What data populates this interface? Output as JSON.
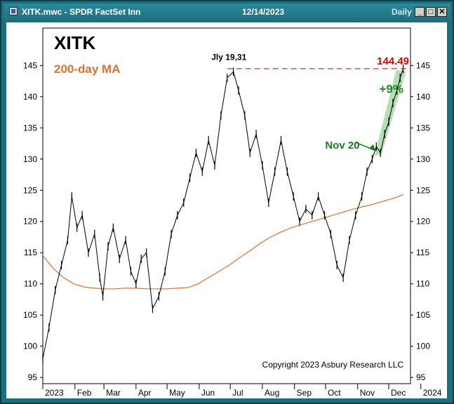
{
  "window": {
    "title": "XITK.mwc - SPDR FactSet Inn",
    "date": "12/14/2023",
    "period": "Daily",
    "buttons": [
      "minimize",
      "maximize",
      "close"
    ],
    "bg_color": "#1d6e7e"
  },
  "chart_data": {
    "type": "line",
    "title": "XITK",
    "ma_label": "200-day MA",
    "ma_color": "#e07030",
    "price_color": "#000000",
    "copyright": "Copyright 2023 Asbury Research LLC",
    "ylim": [
      94,
      151
    ],
    "yticks": [
      95,
      100,
      105,
      110,
      115,
      120,
      125,
      130,
      135,
      140,
      145
    ],
    "xlim": [
      0,
      355
    ],
    "xticks": [
      {
        "label": "2023",
        "x": 0
      },
      {
        "label": "Feb",
        "x": 31
      },
      {
        "label": "Mar",
        "x": 59
      },
      {
        "label": "Apr",
        "x": 90
      },
      {
        "label": "May",
        "x": 120
      },
      {
        "label": "Jun",
        "x": 151
      },
      {
        "label": "Jul",
        "x": 181
      },
      {
        "label": "Aug",
        "x": 212
      },
      {
        "label": "Sep",
        "x": 243
      },
      {
        "label": "Oct",
        "x": 273
      },
      {
        "label": "Nov",
        "x": 304
      },
      {
        "label": "Dec",
        "x": 334
      },
      {
        "label": "2024",
        "x": 365
      }
    ],
    "price": {
      "x": [
        0,
        6,
        12,
        18,
        24,
        28,
        33,
        38,
        44,
        50,
        55,
        58,
        63,
        68,
        74,
        80,
        85,
        90,
        95,
        100,
        106,
        112,
        118,
        124,
        130,
        136,
        142,
        148,
        154,
        160,
        166,
        172,
        178,
        184,
        189,
        195,
        200,
        206,
        212,
        218,
        224,
        230,
        236,
        242,
        248,
        254,
        260,
        266,
        272,
        278,
        284,
        290,
        296,
        302,
        308,
        313,
        318,
        322,
        326,
        330,
        334,
        338,
        342,
        345,
        348
      ],
      "y": [
        98,
        103,
        109,
        113,
        117,
        124,
        119,
        121,
        115,
        118,
        111,
        108,
        116,
        119,
        114,
        117,
        112,
        110,
        114,
        115,
        106,
        108,
        112,
        118,
        121,
        123,
        127,
        131,
        128,
        133,
        129,
        137,
        143,
        144,
        141,
        137,
        131,
        134,
        129,
        123,
        128,
        133,
        128,
        124,
        120,
        122,
        121,
        124,
        121,
        118,
        113,
        111,
        117,
        121,
        124,
        128,
        130,
        132,
        131,
        134,
        136,
        139,
        141,
        143,
        144.49
      ]
    },
    "ma": {
      "x": [
        0,
        10,
        20,
        30,
        40,
        50,
        60,
        70,
        80,
        90,
        100,
        110,
        120,
        130,
        140,
        150,
        160,
        170,
        180,
        190,
        200,
        210,
        220,
        230,
        240,
        250,
        260,
        270,
        280,
        290,
        300,
        310,
        320,
        330,
        340,
        348
      ],
      "y": [
        114.5,
        112.5,
        111,
        110,
        109.5,
        109.3,
        109.2,
        109.2,
        109.3,
        109.3,
        109.2,
        109.2,
        109.2,
        109.3,
        109.4,
        110,
        111,
        112,
        113,
        114.2,
        115.3,
        116.5,
        117.5,
        118.3,
        119,
        119.5,
        120,
        120.5,
        121,
        121.5,
        122,
        122.4,
        122.8,
        123.3,
        123.8,
        124.3
      ]
    },
    "annotations": [
      {
        "text": "Jly 19,31",
        "x": 200,
        "y": 145,
        "color": "#000000"
      },
      {
        "text": "144.49",
        "x": 348,
        "y": 144.49,
        "color": "#e00000",
        "line_from_x": 178,
        "line_style": "dashed"
      },
      {
        "text": "+9%",
        "color": "#1a8a1a"
      },
      {
        "text": "Nov 20",
        "color": "#1a7a1a",
        "x": 320,
        "y": 131
      }
    ],
    "highlight": {
      "from_x": 323,
      "from_y": 131,
      "to_x": 348,
      "to_y": 144.49,
      "color": "#a8d8a8"
    },
    "grid": false,
    "legend": "top-left"
  }
}
